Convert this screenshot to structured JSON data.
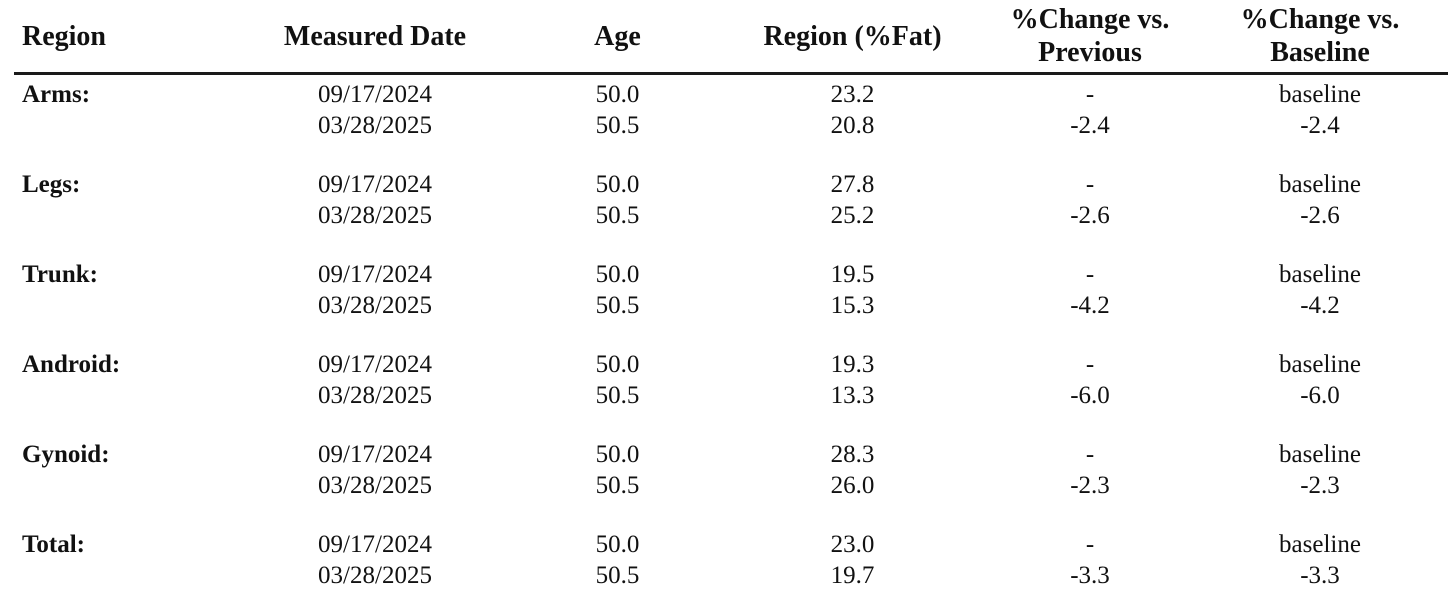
{
  "table": {
    "columns": [
      {
        "lines": [
          "Region"
        ]
      },
      {
        "lines": [
          "Measured Date"
        ]
      },
      {
        "lines": [
          "Age"
        ]
      },
      {
        "lines": [
          "Region (%Fat)"
        ]
      },
      {
        "lines": [
          "%Change vs.",
          "Previous"
        ]
      },
      {
        "lines": [
          "%Change vs.",
          "Baseline"
        ]
      }
    ],
    "groups": [
      {
        "region": "Arms:",
        "rows": [
          {
            "date": "09/17/2024",
            "age": "50.0",
            "fat": "23.2",
            "change_previous": "-",
            "change_baseline": "baseline"
          },
          {
            "date": "03/28/2025",
            "age": "50.5",
            "fat": "20.8",
            "change_previous": "-2.4",
            "change_baseline": "-2.4"
          }
        ]
      },
      {
        "region": "Legs:",
        "rows": [
          {
            "date": "09/17/2024",
            "age": "50.0",
            "fat": "27.8",
            "change_previous": "-",
            "change_baseline": "baseline"
          },
          {
            "date": "03/28/2025",
            "age": "50.5",
            "fat": "25.2",
            "change_previous": "-2.6",
            "change_baseline": "-2.6"
          }
        ]
      },
      {
        "region": "Trunk:",
        "rows": [
          {
            "date": "09/17/2024",
            "age": "50.0",
            "fat": "19.5",
            "change_previous": "-",
            "change_baseline": "baseline"
          },
          {
            "date": "03/28/2025",
            "age": "50.5",
            "fat": "15.3",
            "change_previous": "-4.2",
            "change_baseline": "-4.2"
          }
        ]
      },
      {
        "region": "Android:",
        "rows": [
          {
            "date": "09/17/2024",
            "age": "50.0",
            "fat": "19.3",
            "change_previous": "-",
            "change_baseline": "baseline"
          },
          {
            "date": "03/28/2025",
            "age": "50.5",
            "fat": "13.3",
            "change_previous": "-6.0",
            "change_baseline": "-6.0"
          }
        ]
      },
      {
        "region": "Gynoid:",
        "rows": [
          {
            "date": "09/17/2024",
            "age": "50.0",
            "fat": "28.3",
            "change_previous": "-",
            "change_baseline": "baseline"
          },
          {
            "date": "03/28/2025",
            "age": "50.5",
            "fat": "26.0",
            "change_previous": "-2.3",
            "change_baseline": "-2.3"
          }
        ]
      },
      {
        "region": "Total:",
        "rows": [
          {
            "date": "09/17/2024",
            "age": "50.0",
            "fat": "23.0",
            "change_previous": "-",
            "change_baseline": "baseline"
          },
          {
            "date": "03/28/2025",
            "age": "50.5",
            "fat": "19.7",
            "change_previous": "-3.3",
            "change_baseline": "-3.3"
          }
        ]
      }
    ]
  }
}
